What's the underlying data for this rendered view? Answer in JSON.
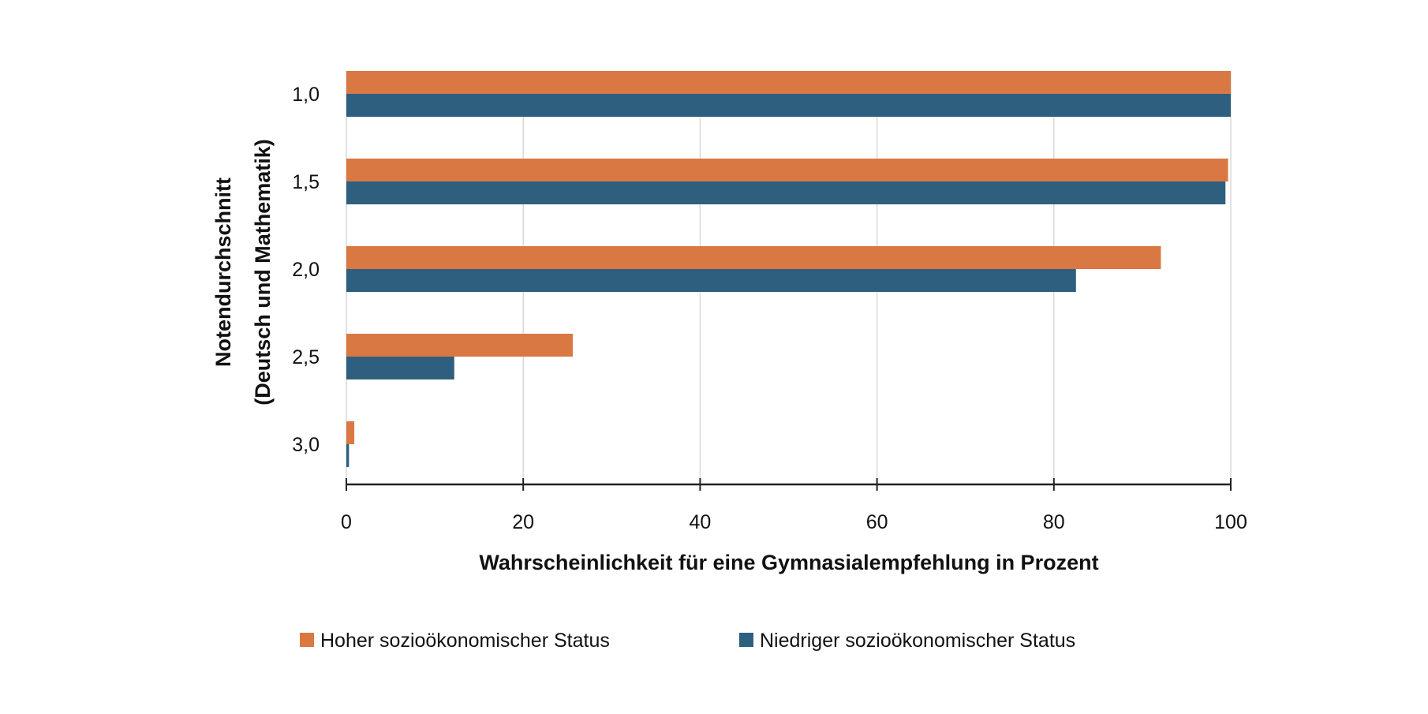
{
  "chart_data": {
    "type": "bar",
    "orientation": "horizontal",
    "title": "",
    "xlabel": "Wahrscheinlichkeit für eine Gymnasialempfehlung in Prozent",
    "ylabel_line1": "Notendurchschnitt",
    "ylabel_line2": "(Deutsch und Mathematik)",
    "categories": [
      "1,0",
      "1,5",
      "2,0",
      "2,5",
      "3,0"
    ],
    "xlim": [
      0,
      100
    ],
    "xticks": [
      "0",
      "20",
      "40",
      "60",
      "80",
      "100"
    ],
    "grid": "vertical",
    "legend_position": "bottom",
    "series": [
      {
        "name": "Hoher sozioökonomischer Status",
        "color": "#D97843",
        "values": [
          100,
          99.7,
          92.1,
          25.6,
          0.9
        ]
      },
      {
        "name": "Niedriger sozioökonomischer Status",
        "color": "#2E5F7F",
        "values": [
          100,
          99.4,
          82.5,
          12.2,
          0.3
        ]
      }
    ]
  }
}
